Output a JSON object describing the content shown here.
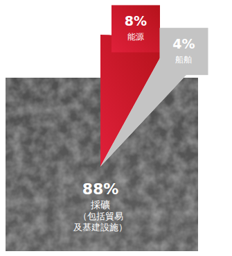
{
  "chart_data": {
    "type": "pie",
    "categories": [
      "採礦\n（包括貿易\n及基建設施）",
      "能源",
      "船舶"
    ],
    "values": [
      88,
      8,
      4
    ],
    "value_labels": [
      "88%",
      "8%",
      "4%"
    ],
    "colors": [
      "#2f2f2f",
      "#b5121b",
      "#c4c4c4"
    ],
    "data_labels": true
  }
}
